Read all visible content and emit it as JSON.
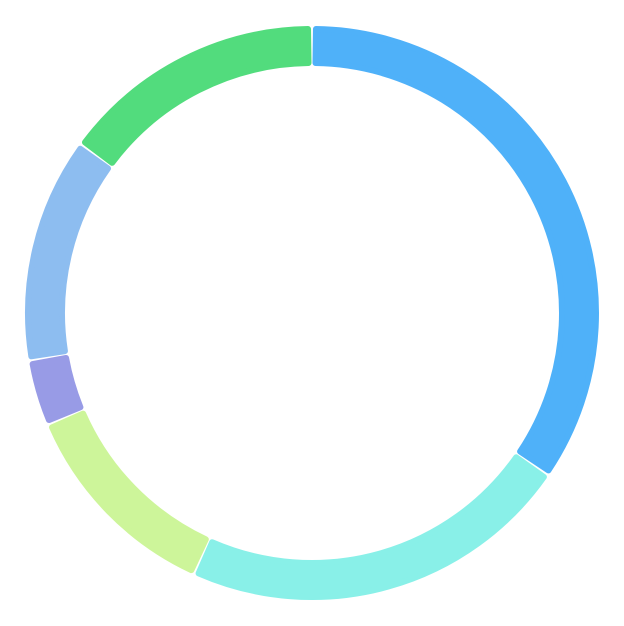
{
  "chart_data": {
    "type": "pie",
    "variant": "donut",
    "title": "",
    "legend": "none",
    "values": [
      33.5,
      21.5,
      11.5,
      3.6,
      12.3,
      14.5
    ],
    "colors": [
      "#4fb1f9",
      "#89f0e8",
      "#cdf59a",
      "#989be6",
      "#8dbdf0",
      "#52dc7d"
    ]
  }
}
